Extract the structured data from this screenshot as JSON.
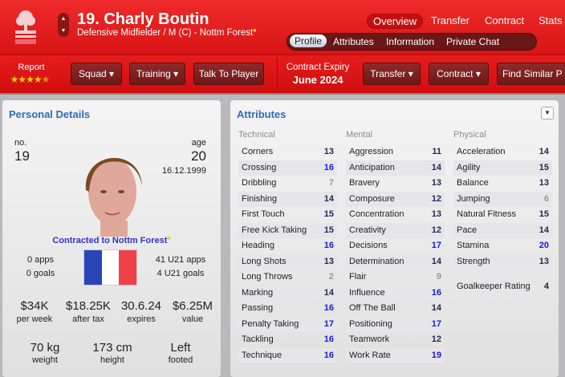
{
  "header": {
    "title": "19. Charly Boutin",
    "subtitle": "Defensive Midfielder / M (C) - Nottm Forest",
    "crest_text": "Forest",
    "nav": [
      "Overview",
      "Transfer",
      "Contract",
      "Stats"
    ],
    "subnav": [
      "Profile",
      "Attributes",
      "Information",
      "Private Chat"
    ]
  },
  "toolbar": {
    "report_label": "Report",
    "report_stars": 4.5,
    "squad": "Squad",
    "training": "Training",
    "talk": "Talk To Player",
    "contract_expiry_label": "Contract Expiry",
    "contract_expiry_value": "June 2024",
    "transfer": "Transfer",
    "contract": "Contract",
    "find_similar": "Find Similar P"
  },
  "personal": {
    "title": "Personal Details",
    "no_label": "no.",
    "no": "19",
    "age_label": "age",
    "age": "20",
    "dob": "16.12.1999",
    "contracted": "Contracted to Nottm Forest",
    "apps": "0 apps",
    "goals": "0 goals",
    "u21_apps": "41 U21 apps",
    "u21_goals": "4 U21 goals",
    "nationality_flag": "France",
    "stats": [
      {
        "v": "$34K",
        "l": "per week"
      },
      {
        "v": "$18.25K",
        "l": "after tax"
      },
      {
        "v": "30.6.24",
        "l": "expires"
      },
      {
        "v": "$6.25M",
        "l": "value"
      }
    ],
    "body": [
      {
        "v": "70 kg",
        "l": "weight"
      },
      {
        "v": "173 cm",
        "l": "height"
      },
      {
        "v": "Left",
        "l": "footed"
      }
    ]
  },
  "attributes": {
    "title": "Attributes",
    "colors": {
      "high": "#1a1ae0",
      "mid": "#1c2a55",
      "low": "#999999"
    },
    "columns": [
      {
        "name": "Technical",
        "items": [
          [
            "Corners",
            13
          ],
          [
            "Crossing",
            16
          ],
          [
            "Dribbling",
            7
          ],
          [
            "Finishing",
            14
          ],
          [
            "First Touch",
            15
          ],
          [
            "Free Kick Taking",
            15
          ],
          [
            "Heading",
            16
          ],
          [
            "Long Shots",
            13
          ],
          [
            "Long Throws",
            2
          ],
          [
            "Marking",
            14
          ],
          [
            "Passing",
            16
          ],
          [
            "Penalty Taking",
            17
          ],
          [
            "Tackling",
            16
          ],
          [
            "Technique",
            16
          ]
        ]
      },
      {
        "name": "Mental",
        "items": [
          [
            "Aggression",
            11
          ],
          [
            "Anticipation",
            14
          ],
          [
            "Bravery",
            13
          ],
          [
            "Composure",
            12
          ],
          [
            "Concentration",
            13
          ],
          [
            "Creativity",
            12
          ],
          [
            "Decisions",
            17
          ],
          [
            "Determination",
            14
          ],
          [
            "Flair",
            9
          ],
          [
            "Influence",
            16
          ],
          [
            "Off The Ball",
            14
          ],
          [
            "Positioning",
            17
          ],
          [
            "Teamwork",
            12
          ],
          [
            "Work Rate",
            19
          ]
        ]
      },
      {
        "name": "Physical",
        "items": [
          [
            "Acceleration",
            14
          ],
          [
            "Agility",
            15
          ],
          [
            "Balance",
            13
          ],
          [
            "Jumping",
            6
          ],
          [
            "Natural Fitness",
            15
          ],
          [
            "Pace",
            14
          ],
          [
            "Stamina",
            20
          ],
          [
            "Strength",
            13
          ]
        ]
      }
    ],
    "goalkeeper_rating_label": "Goalkeeper Rating",
    "goalkeeper_rating": 4
  }
}
